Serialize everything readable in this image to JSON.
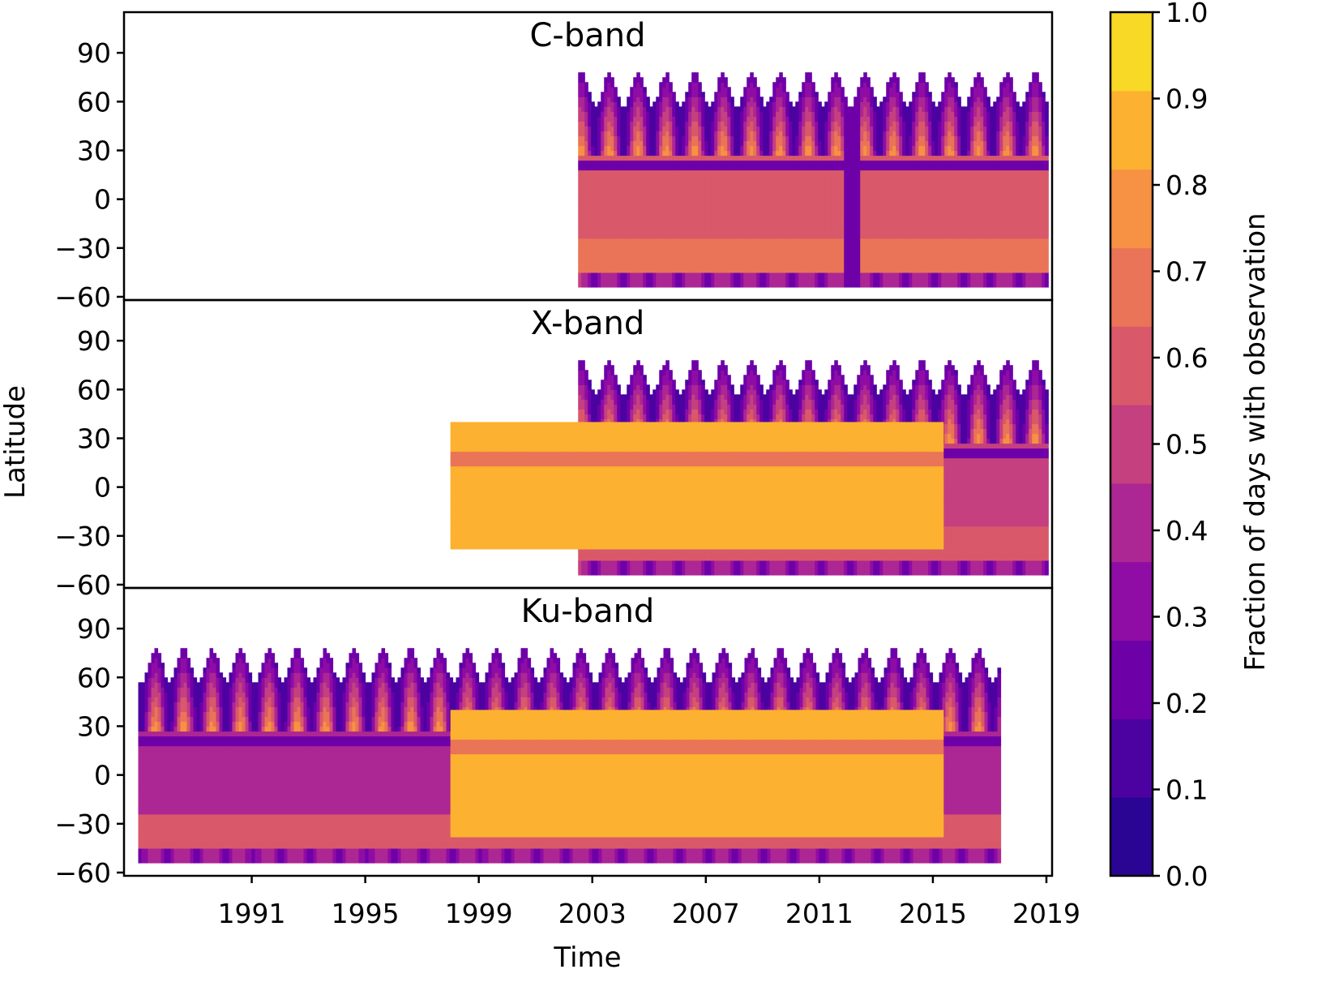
{
  "figure": {
    "shared_ylabel": "Latitude",
    "shared_xlabel": "Time",
    "colorbar": {
      "label": "Fraction of days with observation",
      "ticks": [
        "0.0",
        "0.1",
        "0.2",
        "0.3",
        "0.4",
        "0.5",
        "0.6",
        "0.7",
        "0.8",
        "0.9",
        "1.0"
      ],
      "colors": [
        "#2a0593",
        "#4c02a1",
        "#6e00a8",
        "#8f0da4",
        "#ac2694",
        "#c5407e",
        "#d9596a",
        "#ea7457",
        "#f79143",
        "#fdb130",
        "#f8d925"
      ]
    }
  },
  "chart_data": [
    {
      "type": "heatmap",
      "title": "C-band",
      "xlabel": "",
      "ylabel": "",
      "xlim": [
        1986.5,
        2019.2
      ],
      "ylim": [
        -62,
        115
      ],
      "yticks": [
        90,
        60,
        30,
        0,
        -30,
        -60
      ],
      "ytick_labels": [
        "90",
        "60",
        "30",
        "0",
        "−30",
        "−60"
      ],
      "xticks": [],
      "segments": [
        {
          "x": [
            2002.5,
            2019.0
          ],
          "lat": [
            -54,
            82
          ],
          "equatorial_fraction": 0.65,
          "seasonal_high_lat": true
        }
      ],
      "gap": {
        "x": [
          2011.8,
          2012.4
        ],
        "fraction": 0.2
      }
    },
    {
      "type": "heatmap",
      "title": "X-band",
      "xlabel": "",
      "ylabel": "",
      "xlim": [
        1986.5,
        2019.2
      ],
      "ylim": [
        -62,
        115
      ],
      "yticks": [
        90,
        60,
        30,
        0,
        -30,
        -60
      ],
      "ytick_labels": [
        "90",
        "60",
        "30",
        "0",
        "−30",
        "−60"
      ],
      "xticks": [],
      "segments": [
        {
          "x": [
            2002.5,
            2019.0
          ],
          "lat": [
            -54,
            82
          ],
          "equatorial_fraction": 0.55,
          "seasonal_high_lat": true
        },
        {
          "x": [
            1998.0,
            2015.3
          ],
          "lat": [
            -38,
            39
          ],
          "equatorial_fraction": 0.9,
          "seasonal_high_lat": false
        }
      ]
    },
    {
      "type": "heatmap",
      "title": "Ku-band",
      "xlabel": "",
      "ylabel": "",
      "xlim": [
        1986.5,
        2019.2
      ],
      "ylim": [
        -62,
        115
      ],
      "yticks": [
        90,
        60,
        30,
        0,
        -30,
        -60
      ],
      "ytick_labels": [
        "90",
        "60",
        "30",
        "0",
        "−30",
        "−60"
      ],
      "xticks": [
        1991,
        1995,
        1999,
        2003,
        2007,
        2011,
        2015,
        2019
      ],
      "xtick_labels": [
        "1991",
        "1995",
        "1999",
        "2003",
        "2007",
        "2011",
        "2015",
        "2019"
      ],
      "segments": [
        {
          "x": [
            1987.0,
            2017.3
          ],
          "lat": [
            -54,
            80
          ],
          "equatorial_fraction": 0.48,
          "seasonal_high_lat": true
        },
        {
          "x": [
            1998.0,
            2015.3
          ],
          "lat": [
            -38,
            39
          ],
          "equatorial_fraction": 0.92,
          "seasonal_high_lat": false
        }
      ]
    }
  ]
}
